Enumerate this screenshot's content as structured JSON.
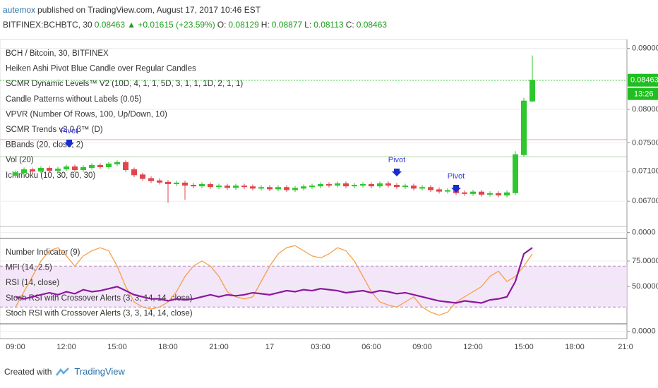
{
  "header": {
    "author": "autemox",
    "published": "published on TradingView.com, August 17, 2017 10:46 EST",
    "symbol": "BITFINEX:BCHBTC, 30",
    "last": "0.08463",
    "change": "▲ +0.01615 (+23.59%)",
    "o_label": "O:",
    "o": "0.08129",
    "h_label": "H:",
    "h": "0.08877",
    "l_label": "L:",
    "l": "0.08113",
    "c_label": "C:",
    "c": "0.08463"
  },
  "footer": {
    "created": "Created with",
    "brand": "TradingView"
  },
  "chart_data": [
    {
      "type": "candlestick",
      "log_scale": true,
      "up_color": "#2fc62f",
      "down_color": "#e0474c",
      "legend": [
        "BCH / Bitcoin, 30, BITFINEX",
        "Heiken Ashi Pivot Blue Candle over Regular Candles",
        "SCMR Dynamic Levels™ V2 (10D, 4, 1, 1, 5D, 3, 1, 1, 1D, 2, 1, 1)",
        "Candle Patterns without Labels (0.05)",
        "VPVR (Number Of Rows, 100, Up/Down, 10)",
        "SCMR Trends v2.0 β™ (D)",
        "BBands (20, close, 2)",
        "Vol (20)",
        "Ichimoku (10, 30, 60, 30)"
      ],
      "annotations": [
        "Pivot",
        "Pivot",
        "Pivot"
      ],
      "price_label": "0.08463",
      "countdown": "13:26",
      "categories": [
        "09:00",
        null,
        null,
        null,
        null,
        null,
        "12:00",
        null,
        null,
        null,
        null,
        null,
        "15:00",
        null,
        null,
        null,
        null,
        null,
        "18:00",
        null,
        null,
        null,
        null,
        null,
        "21:00",
        null,
        null,
        null,
        null,
        null,
        "17",
        null,
        null,
        null,
        null,
        null,
        "03:00",
        null,
        null,
        null,
        null,
        null,
        "06:00",
        null,
        null,
        null,
        null,
        null,
        "09:00",
        null,
        null,
        null,
        null,
        null,
        "12:00",
        null,
        null,
        null,
        null,
        null,
        "15:00",
        null,
        null,
        null,
        null,
        null,
        "18:00",
        null,
        null,
        null,
        null,
        null,
        "21:0",
        null
      ],
      "open": [
        0.0704,
        0.0708,
        0.0712,
        0.071,
        0.0714,
        0.0711,
        0.0713,
        0.0716,
        0.0712,
        0.0715,
        0.0718,
        0.0716,
        0.072,
        0.0722,
        0.0712,
        0.0705,
        0.07,
        0.0697,
        0.0695,
        0.0693,
        0.0694,
        0.0691,
        0.069,
        0.0692,
        0.0689,
        0.069,
        0.0688,
        0.069,
        0.0689,
        0.0687,
        0.0688,
        0.0686,
        0.0688,
        0.0685,
        0.0687,
        0.0689,
        0.069,
        0.0692,
        0.0691,
        0.0693,
        0.069,
        0.0691,
        0.0692,
        0.069,
        0.0693,
        0.0691,
        0.0689,
        0.069,
        0.0687,
        0.0688,
        0.0685,
        0.0683,
        0.0684,
        0.0681,
        0.068,
        0.0682,
        0.0679,
        0.068,
        0.0678,
        0.0681,
        0.0733,
        0.08129,
        null,
        null,
        null,
        null,
        null,
        null,
        null,
        null,
        null,
        null,
        null,
        null
      ],
      "high": [
        0.0711,
        0.0715,
        0.0715,
        0.0717,
        0.0717,
        0.0716,
        0.0719,
        0.0719,
        0.0718,
        0.0721,
        0.0721,
        0.0723,
        0.0725,
        0.0725,
        0.0715,
        0.0708,
        0.0703,
        0.07,
        0.0698,
        0.0697,
        0.0697,
        0.0694,
        0.0695,
        0.0695,
        0.0693,
        0.0693,
        0.0693,
        0.0693,
        0.0692,
        0.0691,
        0.0691,
        0.0691,
        0.0691,
        0.069,
        0.0692,
        0.0693,
        0.0695,
        0.0695,
        0.0696,
        0.0696,
        0.0694,
        0.0695,
        0.0695,
        0.0696,
        0.0696,
        0.0694,
        0.0693,
        0.0693,
        0.0691,
        0.0691,
        0.0688,
        0.0687,
        0.0687,
        0.0684,
        0.0685,
        0.0685,
        0.0683,
        0.0683,
        0.0684,
        0.0738,
        0.0818,
        0.08877,
        null,
        null,
        null,
        null,
        null,
        null,
        null,
        null,
        null,
        null,
        null,
        null
      ],
      "low": [
        0.0701,
        0.0705,
        0.0707,
        0.0707,
        0.0708,
        0.0708,
        0.071,
        0.0709,
        0.0709,
        0.0712,
        0.0713,
        0.0713,
        0.0717,
        0.0709,
        0.0702,
        0.0697,
        0.0694,
        0.0692,
        0.0668,
        0.069,
        0.0672,
        0.0687,
        0.0687,
        0.0686,
        0.0686,
        0.0685,
        0.0685,
        0.0686,
        0.0684,
        0.0684,
        0.0683,
        0.0683,
        0.0682,
        0.0682,
        0.0684,
        0.0686,
        0.0687,
        0.0688,
        0.0688,
        0.0687,
        0.0687,
        0.0688,
        0.0687,
        0.0687,
        0.0688,
        0.0686,
        0.0686,
        0.0684,
        0.0684,
        0.0682,
        0.068,
        0.068,
        0.0678,
        0.0677,
        0.0677,
        0.0676,
        0.0676,
        0.0675,
        0.0675,
        0.0678,
        0.073,
        0.08113,
        null,
        null,
        null,
        null,
        null,
        null,
        null,
        null,
        null,
        null,
        null,
        null
      ],
      "close": [
        0.0708,
        0.0712,
        0.071,
        0.0714,
        0.0711,
        0.0713,
        0.0716,
        0.0712,
        0.0715,
        0.0718,
        0.0716,
        0.072,
        0.0722,
        0.0712,
        0.0705,
        0.07,
        0.0697,
        0.0695,
        0.0693,
        0.0694,
        0.0691,
        0.069,
        0.0692,
        0.0689,
        0.069,
        0.0688,
        0.069,
        0.0689,
        0.0687,
        0.0688,
        0.0686,
        0.0688,
        0.0685,
        0.0687,
        0.0689,
        0.069,
        0.0692,
        0.0691,
        0.0693,
        0.069,
        0.0691,
        0.0692,
        0.069,
        0.0693,
        0.0691,
        0.0689,
        0.069,
        0.0687,
        0.0688,
        0.0685,
        0.0683,
        0.0684,
        0.0681,
        0.068,
        0.0682,
        0.0679,
        0.068,
        0.0678,
        0.0681,
        0.0733,
        0.0813,
        0.08463,
        null,
        null,
        null,
        null,
        null,
        null,
        null,
        null,
        null,
        null,
        null,
        null
      ],
      "ylim": [
        0.0639,
        0.0913
      ],
      "yticks": [
        {
          "value": 0.067,
          "label": "0.06700"
        },
        {
          "value": 0.071,
          "label": "0.07100"
        },
        {
          "value": 0.075,
          "label": "0.07500"
        },
        {
          "value": 0.08,
          "label": "0.08000"
        },
        {
          "value": 0.09,
          "label": "0.09000"
        }
      ]
    },
    {
      "type": "empty",
      "ylim": [
        -1,
        1
      ],
      "yticks": [
        {
          "value": 0,
          "label": "0.0000"
        }
      ]
    },
    {
      "type": "line",
      "legend": [
        "Number Indicator (9)",
        "MFI (14, 2.5)",
        "RSI (14, close)",
        "Stoch RSI with Crossover Alerts (3, 3, 14, 14, close)",
        "Stoch RSI with Crossover Alerts (3, 3, 14, 14, close)"
      ],
      "bands": [
        30,
        70
      ],
      "series": [
        {
          "color": "#f5a04a",
          "values": [
            30,
            45,
            60,
            75,
            85,
            88,
            80,
            70,
            80,
            85,
            88,
            85,
            70,
            50,
            35,
            30,
            28,
            30,
            35,
            45,
            60,
            70,
            75,
            70,
            60,
            45,
            40,
            38,
            40,
            55,
            70,
            82,
            88,
            90,
            85,
            80,
            78,
            82,
            88,
            85,
            75,
            60,
            45,
            35,
            32,
            30,
            35,
            40,
            30,
            25,
            22,
            25,
            35,
            40,
            45,
            50,
            60,
            65,
            55,
            60,
            70,
            82,
            null,
            null,
            null,
            null,
            null,
            null,
            null,
            null,
            null,
            null,
            null,
            null
          ]
        },
        {
          "color": "#8a1a9b",
          "values": [
            40,
            38,
            40,
            42,
            44,
            42,
            45,
            43,
            47,
            45,
            46,
            48,
            50,
            46,
            42,
            40,
            38,
            38,
            36,
            38,
            37,
            38,
            40,
            42,
            40,
            42,
            41,
            42,
            44,
            43,
            42,
            44,
            46,
            45,
            47,
            46,
            48,
            47,
            46,
            44,
            45,
            46,
            44,
            46,
            45,
            43,
            44,
            42,
            40,
            38,
            36,
            35,
            34,
            36,
            35,
            34,
            37,
            38,
            40,
            55,
            82,
            88,
            null,
            null,
            null,
            null,
            null,
            null,
            null,
            null,
            null,
            null,
            null,
            null
          ]
        }
      ],
      "ylim": [
        15,
        95
      ],
      "yticks": [
        {
          "value": 50,
          "label": "50.0000"
        },
        {
          "value": 75,
          "label": "75.0000"
        }
      ]
    },
    {
      "type": "empty",
      "ylim": [
        -1,
        1
      ],
      "yticks": [
        {
          "value": 0,
          "label": "0.0000"
        }
      ]
    }
  ]
}
